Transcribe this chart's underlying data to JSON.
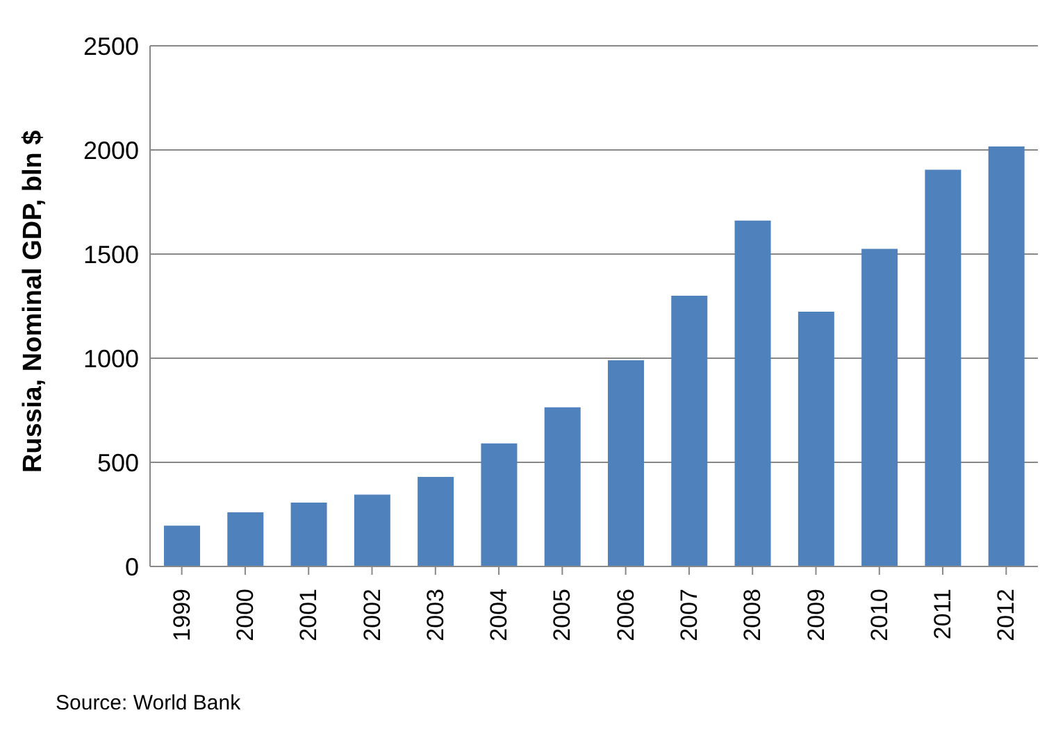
{
  "chart_data": {
    "type": "bar",
    "ylabel": "Russia, Nominal GDP, bln $",
    "categories": [
      "1999",
      "2000",
      "2001",
      "2002",
      "2003",
      "2004",
      "2005",
      "2006",
      "2007",
      "2008",
      "2009",
      "2010",
      "2011",
      "2012"
    ],
    "values": [
      196,
      260,
      307,
      345,
      430,
      591,
      764,
      990,
      1300,
      1661,
      1223,
      1525,
      1905,
      2017
    ],
    "color": "#4f81bd",
    "ylim": [
      0,
      2500
    ],
    "yticks": [
      0,
      500,
      1000,
      1500,
      2000,
      2500
    ],
    "grid": "y",
    "annotations": [
      "Source: World Bank"
    ]
  }
}
